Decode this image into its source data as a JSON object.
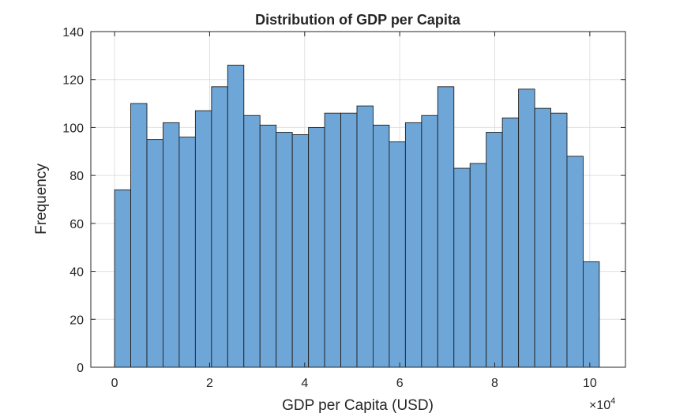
{
  "chart_data": {
    "type": "bar",
    "title": "Distribution of GDP per Capita",
    "xlabel": "GDP per Capita (USD)",
    "ylabel": "Frequency",
    "x_exponent_base": "×10",
    "x_exponent_power": "4",
    "xlim": [
      -0.5,
      10.75
    ],
    "ylim": [
      0,
      140
    ],
    "xticks": [
      0,
      2,
      4,
      6,
      8,
      10
    ],
    "yticks": [
      0,
      20,
      40,
      60,
      80,
      100,
      120,
      140
    ],
    "grid": true,
    "bin_edges": [
      0,
      0.34,
      0.68,
      1.02,
      1.36,
      1.7,
      2.04,
      2.38,
      2.72,
      3.06,
      3.4,
      3.74,
      4.08,
      4.42,
      4.76,
      5.1,
      5.44,
      5.78,
      6.12,
      6.46,
      6.8,
      7.14,
      7.48,
      7.82,
      8.16,
      8.5,
      8.84,
      9.18,
      9.52,
      9.86,
      10.2
    ],
    "values": [
      74,
      110,
      95,
      102,
      96,
      107,
      117,
      126,
      105,
      101,
      98,
      97,
      100,
      106,
      106,
      109,
      101,
      94,
      102,
      105,
      117,
      83,
      85,
      98,
      104,
      116,
      108,
      106,
      88,
      44
    ],
    "colors": {
      "bar_fill": "#6ea6d8",
      "bar_edge": "#1f1f1f",
      "grid": "#e0e0e0",
      "axis": "#262626"
    }
  }
}
